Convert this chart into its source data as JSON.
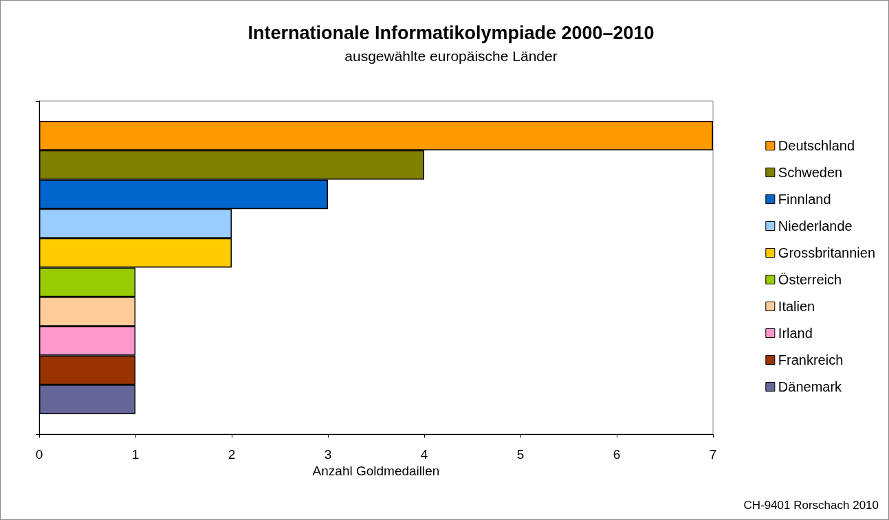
{
  "chart_data": {
    "type": "bar",
    "title": "Internationale Informatikolympiade 2000–2010",
    "subtitle": "ausgewählte europäische Länder",
    "xlabel": "Anzahl Goldmedaillen",
    "orientation": "horizontal",
    "categories": [
      null
    ],
    "series": [
      {
        "name": "Deutschland",
        "color": "#ff9900",
        "values": [
          7
        ]
      },
      {
        "name": "Schweden",
        "color": "#808000",
        "values": [
          4
        ]
      },
      {
        "name": "Finnland",
        "color": "#0066cc",
        "values": [
          3
        ]
      },
      {
        "name": "Niederlande",
        "color": "#99ccff",
        "values": [
          2
        ]
      },
      {
        "name": "Grossbritannien",
        "color": "#ffcc00",
        "values": [
          2
        ]
      },
      {
        "name": "Österreich",
        "color": "#99cc00",
        "values": [
          1
        ]
      },
      {
        "name": "Italien",
        "color": "#ffcc99",
        "values": [
          1
        ]
      },
      {
        "name": "Irland",
        "color": "#ff99cc",
        "values": [
          1
        ]
      },
      {
        "name": "Frankreich",
        "color": "#993300",
        "values": [
          1
        ]
      },
      {
        "name": "Dänemark",
        "color": "#666699",
        "values": [
          1
        ]
      }
    ],
    "xlim": [
      0,
      7
    ],
    "xticks": [
      0,
      1,
      2,
      3,
      4,
      5,
      6,
      7
    ],
    "grid": false,
    "legend": "right",
    "tick_labels": "x",
    "annotations": [
      "CH-9401 Rorschach 2010"
    ]
  }
}
